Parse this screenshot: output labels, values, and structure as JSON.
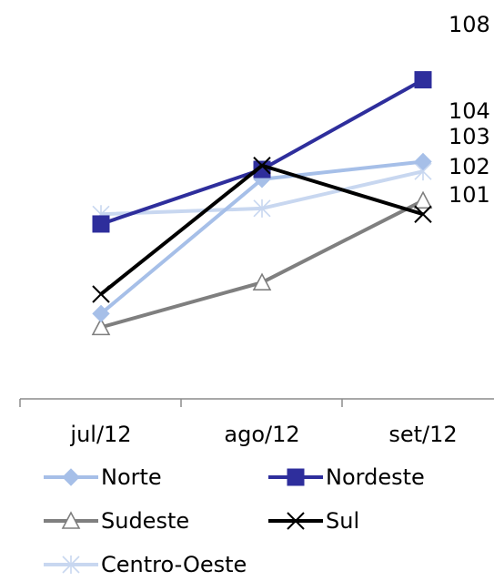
{
  "chart_data": {
    "type": "line",
    "title": "",
    "xlabel": "",
    "ylabel": "",
    "categories": [
      "jul/12",
      "ago/12",
      "set/12"
    ],
    "ylim": [
      92,
      112
    ],
    "grid": false,
    "legend": "bottom",
    "series": [
      {
        "name": "Norte",
        "values": [
          96.0,
          102.9,
          103.8
        ],
        "color": "#a6bfe8",
        "marker": "diamond",
        "end_label": "104"
      },
      {
        "name": "Nordeste",
        "values": [
          100.6,
          103.4,
          108.0
        ],
        "color": "#2e2e9c",
        "marker": "square",
        "end_label": "108"
      },
      {
        "name": "Sudeste",
        "values": [
          95.3,
          97.6,
          101.8
        ],
        "color": "#7f7f7f",
        "marker": "triangle",
        "end_label": "102"
      },
      {
        "name": "Sul",
        "values": [
          97.0,
          103.6,
          101.1
        ],
        "color": "#000000",
        "marker": "x",
        "end_label": "101"
      },
      {
        "name": "Centro-Oeste",
        "values": [
          101.1,
          101.4,
          103.3
        ],
        "color": "#c8d7f0",
        "marker": "star",
        "end_label": "103"
      }
    ],
    "end_labels_order": [
      "108",
      "104",
      "103",
      "102",
      "101"
    ]
  }
}
